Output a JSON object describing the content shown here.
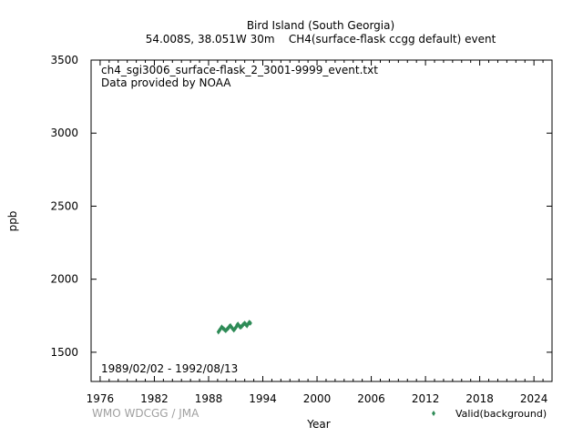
{
  "chart_data": {
    "type": "scatter",
    "title": "Bird Island (South Georgia)",
    "subtitle": "54.008S, 38.051W 30m    CH4(surface-flask ccgg default) event",
    "xlabel": "Year",
    "ylabel": "ppb",
    "xlim": [
      1975.0,
      2026.0
    ],
    "ylim": [
      1300,
      3500
    ],
    "xticks": [
      1976,
      1982,
      1988,
      1994,
      2000,
      2006,
      2012,
      2018,
      2024
    ],
    "yticks": [
      1500,
      2000,
      2500,
      3000,
      3500
    ],
    "annotations": {
      "file": "ch4_sgi3006_surface-flask_2_3001-9999_event.txt",
      "provider": "Data provided by NOAA",
      "date_range": "1989/02/02 - 1992/08/13",
      "credit": "WMO WDCGG / JMA"
    },
    "legend": {
      "placement": "bottom-right",
      "label": "Valid(background)"
    },
    "series": [
      {
        "name": "Valid(background)",
        "color": "#2e8b57",
        "x": [
          1989.09,
          1989.2,
          1989.32,
          1989.45,
          1989.6,
          1989.75,
          1989.9,
          1990.05,
          1990.18,
          1990.3,
          1990.42,
          1990.55,
          1990.68,
          1990.8,
          1990.93,
          1991.05,
          1991.15,
          1991.25,
          1991.38,
          1991.5,
          1991.62,
          1991.75,
          1991.87,
          1992.0,
          1992.12,
          1992.25,
          1992.38,
          1992.5,
          1992.62
        ],
        "y": [
          1640,
          1650,
          1660,
          1672,
          1664,
          1655,
          1648,
          1658,
          1665,
          1676,
          1682,
          1670,
          1660,
          1652,
          1662,
          1672,
          1686,
          1692,
          1680,
          1672,
          1675,
          1684,
          1692,
          1698,
          1690,
          1682,
          1694,
          1704,
          1700
        ]
      }
    ]
  }
}
